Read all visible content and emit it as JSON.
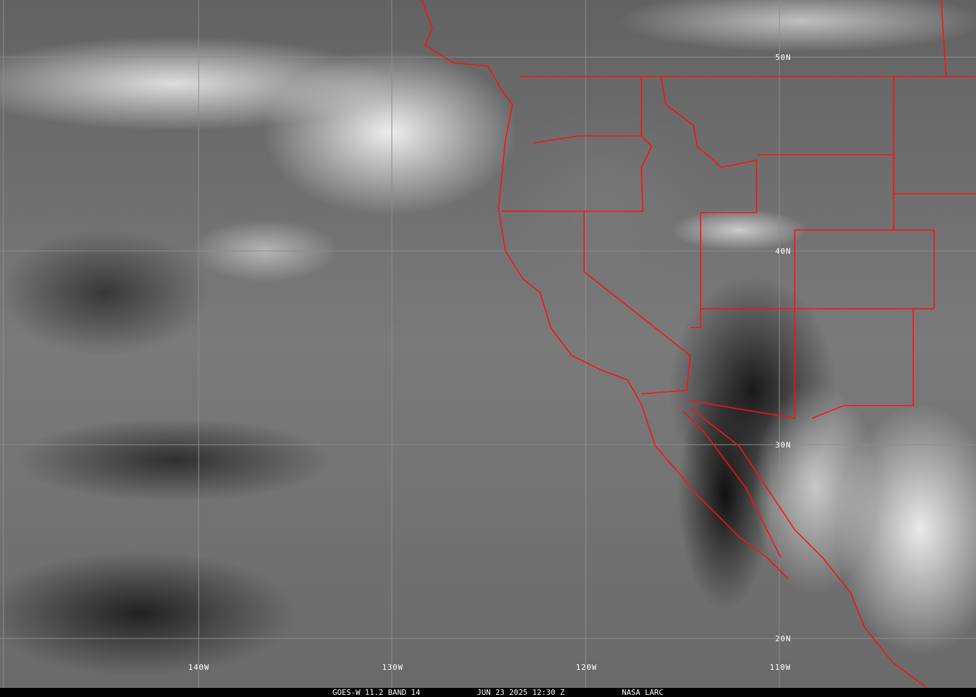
{
  "caption": {
    "satellite": "GOES-W 11.2 BAND 14",
    "datetime": "JUN 23 2025 12:30 Z",
    "source": "NASA LARC"
  },
  "latitude_labels": [
    "50N",
    "40N",
    "30N",
    "20N"
  ],
  "longitude_labels": [
    "140W",
    "130W",
    "120W",
    "110W"
  ],
  "colors": {
    "borders": "#ff1010",
    "grid": "#8c8c8c",
    "labels": "#ffffff"
  }
}
